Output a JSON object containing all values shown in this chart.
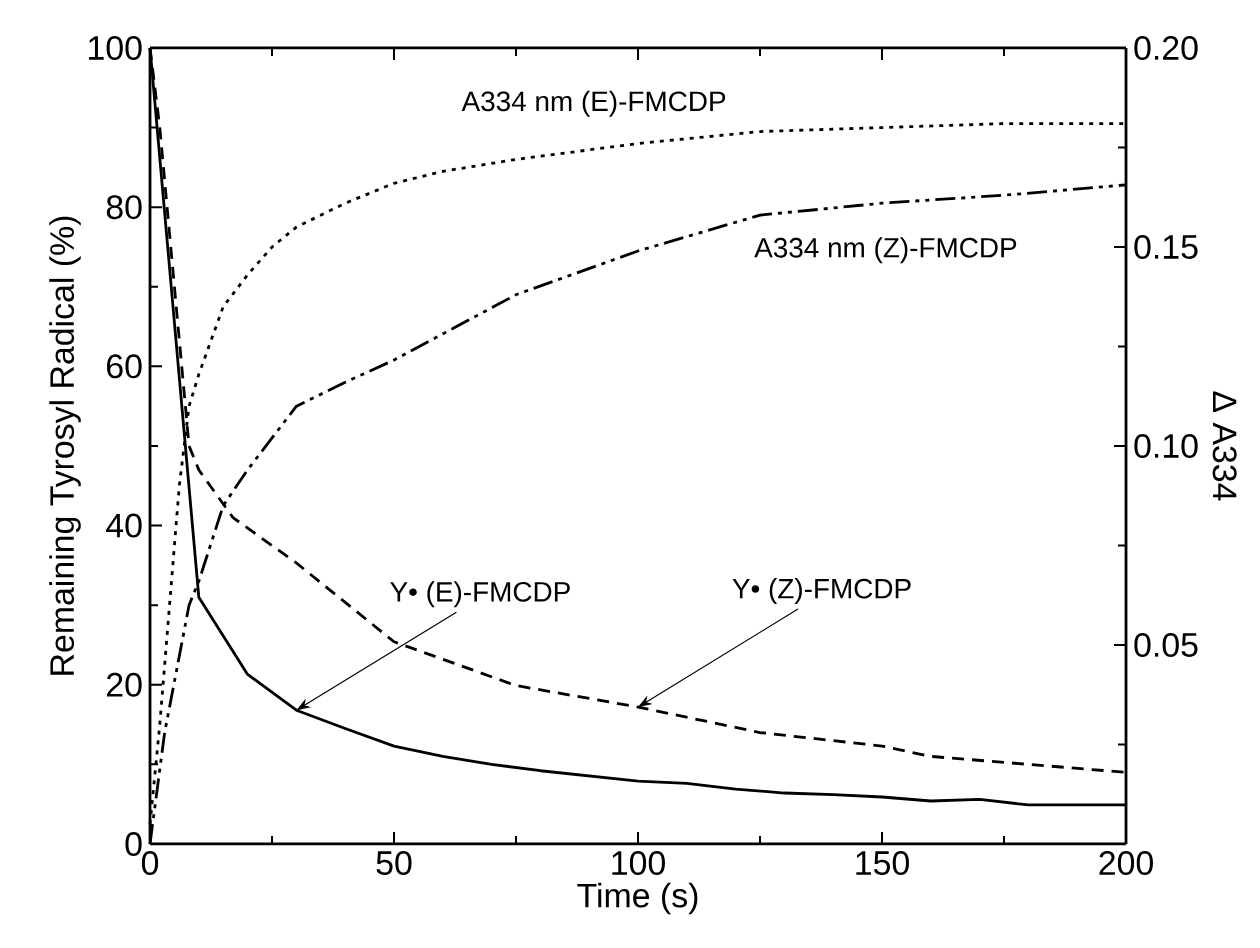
{
  "chart_data": {
    "type": "line",
    "xlabel": "Time (s)",
    "ylabel": "Remaining Tyrosyl Radical (%)",
    "y2label": "Δ A334",
    "xlim": [
      0,
      200
    ],
    "xticks": [
      0,
      50,
      100,
      150,
      200
    ],
    "ylim": [
      0,
      100
    ],
    "yticks": [
      0,
      20,
      40,
      60,
      80,
      100
    ],
    "y2lim": [
      0,
      0.2
    ],
    "y2ticks": [
      {
        "value": 0,
        "label": null
      },
      0.05,
      {
        "value": 0.1,
        "label": "0.10"
      },
      0.15,
      {
        "value": 0.2,
        "label": "0.20"
      }
    ],
    "grid": false,
    "marker": "none",
    "series": [
      {
        "color": "#000000",
        "line_style": "solid",
        "x": [
          0,
          10,
          20,
          30,
          40,
          50,
          60,
          70,
          80,
          100,
          110,
          120,
          130,
          140,
          150,
          160,
          170,
          180,
          200
        ],
        "values": [
          100,
          31,
          21.3,
          16.8,
          14.5,
          12.3,
          11,
          10,
          9.2,
          7.9,
          7.6,
          6.9,
          6.4,
          6.2,
          5.9,
          5.4,
          5.6,
          4.9,
          4.9
        ]
      },
      {
        "color": "#000000",
        "line_style": "dashed",
        "x": [
          0,
          2,
          5,
          8,
          10,
          17,
          30,
          50,
          75,
          100,
          125,
          150,
          160,
          200
        ],
        "values": [
          100,
          90,
          70,
          50,
          47,
          41,
          35.3,
          25.4,
          19.9,
          17.2,
          14,
          12.3,
          11,
          9
        ]
      },
      {
        "color": "#000000",
        "line_style": "dotted",
        "axis": "y2",
        "x": [
          0,
          2,
          4,
          6,
          8,
          10,
          15,
          20,
          25,
          30,
          40,
          50,
          60,
          75,
          100,
          125,
          150,
          175,
          200
        ],
        "values": [
          0.005,
          0.03,
          0.06,
          0.09,
          0.11,
          0.118,
          0.135,
          0.143,
          0.15,
          0.155,
          0.161,
          0.166,
          0.169,
          0.172,
          0.176,
          0.179,
          0.18,
          0.181,
          0.181
        ]
      },
      {
        "color": "#000000",
        "line_style": "dashdotdot",
        "axis": "y2",
        "x": [
          0,
          3,
          8,
          10,
          15,
          20,
          30,
          40,
          50,
          75,
          100,
          125,
          150,
          175,
          200
        ],
        "values": [
          0,
          0.028,
          0.06,
          0.066,
          0.085,
          0.094,
          0.11,
          0.116,
          0.1216,
          0.138,
          0.149,
          0.158,
          0.161,
          0.163,
          0.1656
        ]
      }
    ],
    "annotations": [
      "A334 nm (E)-FMCDP",
      "A334 nm (Z)-FMCDP",
      {
        "text": "Y•  (E)-FMCDP",
        "x": 30,
        "y": 16.8
      },
      {
        "text": "Y•  (Z)-FMCDP",
        "x": 100,
        "y": 17.2
      }
    ]
  }
}
